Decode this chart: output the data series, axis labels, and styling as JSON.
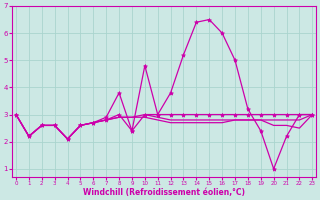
{
  "xlabel": "Windchill (Refroidissement éolien,°C)",
  "background_color": "#cce8e4",
  "grid_color": "#aad4ce",
  "line_color": "#cc00aa",
  "x": [
    0,
    1,
    2,
    3,
    4,
    5,
    6,
    7,
    8,
    9,
    10,
    11,
    12,
    13,
    14,
    15,
    16,
    17,
    18,
    19,
    20,
    21,
    22,
    23
  ],
  "line1": [
    3.0,
    2.2,
    2.6,
    2.6,
    2.1,
    2.6,
    2.7,
    2.8,
    3.0,
    2.4,
    3.0,
    3.0,
    3.0,
    3.0,
    3.0,
    3.0,
    3.0,
    3.0,
    3.0,
    3.0,
    3.0,
    3.0,
    3.0,
    3.0
  ],
  "line2": [
    3.0,
    2.2,
    2.6,
    2.6,
    2.1,
    2.6,
    2.7,
    2.9,
    3.8,
    2.4,
    4.8,
    3.0,
    3.8,
    5.2,
    6.4,
    6.5,
    6.0,
    5.0,
    3.2,
    2.4,
    1.0,
    2.2,
    3.0,
    3.0
  ],
  "line3": [
    3.0,
    2.2,
    2.6,
    2.6,
    2.1,
    2.6,
    2.7,
    2.8,
    2.9,
    2.9,
    2.9,
    2.8,
    2.7,
    2.7,
    2.7,
    2.7,
    2.7,
    2.8,
    2.8,
    2.8,
    2.8,
    2.8,
    2.8,
    3.0
  ],
  "line4": [
    3.0,
    2.2,
    2.6,
    2.6,
    2.1,
    2.6,
    2.7,
    2.8,
    2.9,
    2.9,
    3.0,
    2.9,
    2.8,
    2.8,
    2.8,
    2.8,
    2.8,
    2.8,
    2.8,
    2.8,
    2.6,
    2.6,
    2.5,
    3.0
  ],
  "ylim": [
    0.7,
    7.0
  ],
  "xlim": [
    0,
    23
  ],
  "yticks": [
    1,
    2,
    3,
    4,
    5,
    6,
    7
  ],
  "xticks": [
    0,
    1,
    2,
    3,
    4,
    5,
    6,
    7,
    8,
    9,
    10,
    11,
    12,
    13,
    14,
    15,
    16,
    17,
    18,
    19,
    20,
    21,
    22,
    23
  ]
}
